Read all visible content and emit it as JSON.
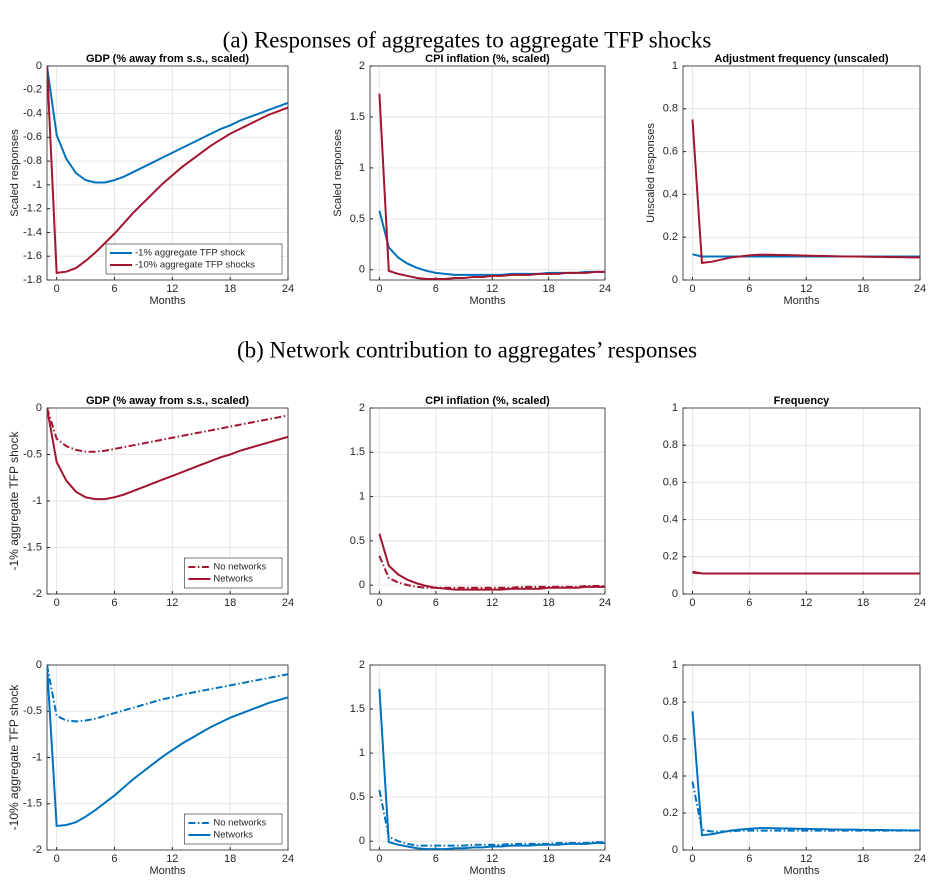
{
  "headings": [
    "(a) Responses of aggregates to aggregate TFP shocks",
    "(b) Network contribution to aggregates’ responses"
  ],
  "chart_data": [
    {
      "type": "line",
      "title": "GDP (% away from s.s., scaled)",
      "y_label": "Scaled responses",
      "x_label": "Months",
      "x": [
        -1,
        0,
        1,
        2,
        3,
        4,
        5,
        6,
        7,
        8,
        9,
        10,
        11,
        12,
        13,
        14,
        15,
        16,
        17,
        18,
        19,
        20,
        21,
        22,
        23,
        24
      ],
      "xlim": [
        -1,
        24
      ],
      "xticks": [
        0,
        6,
        12,
        18,
        24
      ],
      "ylim": [
        -1.8,
        0
      ],
      "yticks": [
        -1.8,
        -1.6,
        -1.4,
        -1.2,
        -1,
        -0.8,
        -0.6,
        -0.4,
        -0.2,
        0
      ],
      "grid": true,
      "legend": "lower right",
      "series": [
        {
          "name": "-1% aggregate TFP shock",
          "color": "#0072bd",
          "style": "solid",
          "values": [
            0,
            -0.58,
            -0.78,
            -0.9,
            -0.96,
            -0.98,
            -0.98,
            -0.96,
            -0.93,
            -0.89,
            -0.85,
            -0.81,
            -0.77,
            -0.73,
            -0.69,
            -0.65,
            -0.61,
            -0.57,
            -0.53,
            -0.5,
            -0.46,
            -0.43,
            -0.4,
            -0.37,
            -0.34,
            -0.31
          ]
        },
        {
          "name": "-10% aggregate TFP shocks",
          "color": "#a2142f",
          "style": "solid",
          "values": [
            0,
            -1.74,
            -1.73,
            -1.7,
            -1.64,
            -1.57,
            -1.49,
            -1.41,
            -1.32,
            -1.23,
            -1.15,
            -1.07,
            -0.99,
            -0.92,
            -0.85,
            -0.79,
            -0.73,
            -0.67,
            -0.62,
            -0.57,
            -0.53,
            -0.49,
            -0.45,
            -0.41,
            -0.38,
            -0.35
          ]
        }
      ]
    },
    {
      "type": "line",
      "title": "CPI inflation (%, scaled)",
      "y_label": "Scaled responses",
      "x_label": "Months",
      "x": [
        -1,
        0,
        1,
        2,
        3,
        4,
        5,
        6,
        7,
        8,
        9,
        10,
        11,
        12,
        13,
        14,
        15,
        16,
        17,
        18,
        19,
        20,
        21,
        22,
        23,
        24
      ],
      "xlim": [
        -1,
        24
      ],
      "xticks": [
        0,
        6,
        12,
        18,
        24
      ],
      "ylim": [
        -0.1,
        2
      ],
      "yticks": [
        0,
        0.5,
        1,
        1.5,
        2
      ],
      "grid": true,
      "series": [
        {
          "color": "#0072bd",
          "style": "solid",
          "values": [
            null,
            0.58,
            0.22,
            0.12,
            0.06,
            0.02,
            -0.01,
            -0.03,
            -0.04,
            -0.05,
            -0.05,
            -0.05,
            -0.05,
            -0.05,
            -0.05,
            -0.04,
            -0.04,
            -0.04,
            -0.04,
            -0.03,
            -0.03,
            -0.03,
            -0.03,
            -0.02,
            -0.02,
            -0.02
          ]
        },
        {
          "color": "#a2142f",
          "style": "solid",
          "values": [
            null,
            1.73,
            -0.01,
            -0.04,
            -0.06,
            -0.08,
            -0.09,
            -0.09,
            -0.09,
            -0.08,
            -0.08,
            -0.07,
            -0.07,
            -0.06,
            -0.06,
            -0.05,
            -0.05,
            -0.05,
            -0.04,
            -0.04,
            -0.04,
            -0.03,
            -0.03,
            -0.03,
            -0.02,
            -0.02
          ]
        }
      ]
    },
    {
      "type": "line",
      "title": "Adjustment frequency (unscaled)",
      "y_label": "Unscaled responses",
      "x_label": "Months",
      "x": [
        -1,
        0,
        1,
        2,
        3,
        4,
        5,
        6,
        7,
        8,
        9,
        10,
        11,
        12,
        13,
        14,
        15,
        16,
        17,
        18,
        19,
        20,
        21,
        22,
        23,
        24
      ],
      "xlim": [
        -1,
        24
      ],
      "xticks": [
        0,
        6,
        12,
        18,
        24
      ],
      "ylim": [
        0,
        1
      ],
      "yticks": [
        0,
        0.2,
        0.4,
        0.6,
        0.8,
        1
      ],
      "grid": true,
      "series": [
        {
          "color": "#0072bd",
          "style": "solid",
          "values": [
            null,
            0.12,
            0.11,
            0.11,
            0.11,
            0.11,
            0.11,
            0.11,
            0.11,
            0.11,
            0.11,
            0.11,
            0.11,
            0.11,
            0.11,
            0.11,
            0.11,
            0.11,
            0.11,
            0.11,
            0.11,
            0.11,
            0.11,
            0.11,
            0.11,
            0.11
          ]
        },
        {
          "color": "#a2142f",
          "style": "solid",
          "values": [
            null,
            0.75,
            0.08,
            0.085,
            0.095,
            0.105,
            0.11,
            0.115,
            0.118,
            0.118,
            0.117,
            0.116,
            0.115,
            0.114,
            0.113,
            0.112,
            0.111,
            0.11,
            0.11,
            0.109,
            0.108,
            0.108,
            0.107,
            0.107,
            0.106,
            0.106
          ]
        }
      ]
    },
    {
      "type": "line",
      "title": "GDP (% away from s.s., scaled)",
      "y_label": "-1% aggregate TFP shock",
      "x": [
        -1,
        0,
        1,
        2,
        3,
        4,
        5,
        6,
        7,
        8,
        9,
        10,
        11,
        12,
        13,
        14,
        15,
        16,
        17,
        18,
        19,
        20,
        21,
        22,
        23,
        24
      ],
      "xlim": [
        -1,
        24
      ],
      "xticks": [
        0,
        6,
        12,
        18,
        24
      ],
      "ylim": [
        -2,
        0
      ],
      "yticks": [
        -2,
        -1.5,
        -1,
        -0.5,
        0
      ],
      "grid": true,
      "legend": "lower right",
      "series": [
        {
          "name": "No networks",
          "color": "#a2142f",
          "style": "dashdot",
          "values": [
            0,
            -0.33,
            -0.41,
            -0.45,
            -0.47,
            -0.47,
            -0.46,
            -0.44,
            -0.42,
            -0.4,
            -0.38,
            -0.36,
            -0.34,
            -0.32,
            -0.3,
            -0.28,
            -0.26,
            -0.24,
            -0.22,
            -0.2,
            -0.18,
            -0.16,
            -0.14,
            -0.12,
            -0.1,
            -0.08
          ]
        },
        {
          "name": "Networks",
          "color": "#a2142f",
          "style": "solid",
          "values": [
            0,
            -0.58,
            -0.78,
            -0.9,
            -0.96,
            -0.98,
            -0.98,
            -0.96,
            -0.93,
            -0.89,
            -0.85,
            -0.81,
            -0.77,
            -0.73,
            -0.69,
            -0.65,
            -0.61,
            -0.57,
            -0.53,
            -0.5,
            -0.46,
            -0.43,
            -0.4,
            -0.37,
            -0.34,
            -0.31
          ]
        }
      ]
    },
    {
      "type": "line",
      "title": "CPI inflation (%, scaled)",
      "x": [
        -1,
        0,
        1,
        2,
        3,
        4,
        5,
        6,
        7,
        8,
        9,
        10,
        11,
        12,
        13,
        14,
        15,
        16,
        17,
        18,
        19,
        20,
        21,
        22,
        23,
        24
      ],
      "xlim": [
        -1,
        24
      ],
      "xticks": [
        0,
        6,
        12,
        18,
        24
      ],
      "ylim": [
        -0.1,
        2
      ],
      "yticks": [
        0,
        0.5,
        1,
        1.5,
        2
      ],
      "grid": true,
      "series": [
        {
          "color": "#a2142f",
          "style": "dashdot",
          "values": [
            null,
            0.33,
            0.08,
            0.03,
            0,
            -0.02,
            -0.03,
            -0.03,
            -0.03,
            -0.03,
            -0.03,
            -0.03,
            -0.03,
            -0.03,
            -0.03,
            -0.03,
            -0.02,
            -0.02,
            -0.02,
            -0.02,
            -0.02,
            -0.02,
            -0.02,
            -0.01,
            -0.01,
            -0.01
          ]
        },
        {
          "color": "#a2142f",
          "style": "solid",
          "values": [
            null,
            0.58,
            0.22,
            0.12,
            0.06,
            0.02,
            -0.01,
            -0.03,
            -0.04,
            -0.05,
            -0.05,
            -0.05,
            -0.05,
            -0.05,
            -0.05,
            -0.04,
            -0.04,
            -0.04,
            -0.04,
            -0.03,
            -0.03,
            -0.03,
            -0.03,
            -0.02,
            -0.02,
            -0.02
          ]
        }
      ]
    },
    {
      "type": "line",
      "title": "Frequency",
      "x": [
        -1,
        0,
        1,
        2,
        3,
        4,
        5,
        6,
        7,
        8,
        9,
        10,
        11,
        12,
        13,
        14,
        15,
        16,
        17,
        18,
        19,
        20,
        21,
        22,
        23,
        24
      ],
      "xlim": [
        -1,
        24
      ],
      "xticks": [
        0,
        6,
        12,
        18,
        24
      ],
      "ylim": [
        0,
        1
      ],
      "yticks": [
        0,
        0.2,
        0.4,
        0.6,
        0.8,
        1
      ],
      "grid": true,
      "series": [
        {
          "color": "#a2142f",
          "style": "dashdot",
          "values": [
            null,
            0.115,
            0.11,
            0.11,
            0.11,
            0.11,
            0.11,
            0.11,
            0.11,
            0.11,
            0.11,
            0.11,
            0.11,
            0.11,
            0.11,
            0.11,
            0.11,
            0.11,
            0.11,
            0.11,
            0.11,
            0.11,
            0.11,
            0.11,
            0.11,
            0.11
          ]
        },
        {
          "color": "#a2142f",
          "style": "solid",
          "values": [
            null,
            0.12,
            0.11,
            0.11,
            0.11,
            0.11,
            0.11,
            0.11,
            0.11,
            0.11,
            0.11,
            0.11,
            0.11,
            0.11,
            0.11,
            0.11,
            0.11,
            0.11,
            0.11,
            0.11,
            0.11,
            0.11,
            0.11,
            0.11,
            0.11,
            0.11
          ]
        }
      ]
    },
    {
      "type": "line",
      "y_label": "-10% aggregate TFP shock",
      "x_label": "Months",
      "x": [
        -1,
        0,
        1,
        2,
        3,
        4,
        5,
        6,
        7,
        8,
        9,
        10,
        11,
        12,
        13,
        14,
        15,
        16,
        17,
        18,
        19,
        20,
        21,
        22,
        23,
        24
      ],
      "xlim": [
        -1,
        24
      ],
      "xticks": [
        0,
        6,
        12,
        18,
        24
      ],
      "ylim": [
        -2,
        0
      ],
      "yticks": [
        -2,
        -1.5,
        -1,
        -0.5,
        0
      ],
      "grid": true,
      "legend": "lower right",
      "series": [
        {
          "name": "No networks",
          "color": "#0072bd",
          "style": "dashdot",
          "values": [
            0,
            -0.55,
            -0.6,
            -0.61,
            -0.6,
            -0.58,
            -0.55,
            -0.52,
            -0.49,
            -0.46,
            -0.43,
            -0.4,
            -0.37,
            -0.35,
            -0.32,
            -0.3,
            -0.28,
            -0.26,
            -0.24,
            -0.22,
            -0.2,
            -0.18,
            -0.16,
            -0.14,
            -0.12,
            -0.1
          ]
        },
        {
          "name": "Networks",
          "color": "#0072bd",
          "style": "solid",
          "values": [
            0,
            -1.74,
            -1.73,
            -1.7,
            -1.64,
            -1.57,
            -1.49,
            -1.41,
            -1.32,
            -1.23,
            -1.15,
            -1.07,
            -0.99,
            -0.92,
            -0.85,
            -0.79,
            -0.73,
            -0.67,
            -0.62,
            -0.57,
            -0.53,
            -0.49,
            -0.45,
            -0.41,
            -0.38,
            -0.35
          ]
        }
      ]
    },
    {
      "type": "line",
      "x_label": "Months",
      "x": [
        -1,
        0,
        1,
        2,
        3,
        4,
        5,
        6,
        7,
        8,
        9,
        10,
        11,
        12,
        13,
        14,
        15,
        16,
        17,
        18,
        19,
        20,
        21,
        22,
        23,
        24
      ],
      "xlim": [
        -1,
        24
      ],
      "xticks": [
        0,
        6,
        12,
        18,
        24
      ],
      "ylim": [
        -0.1,
        2
      ],
      "yticks": [
        0,
        0.5,
        1,
        1.5,
        2
      ],
      "grid": true,
      "series": [
        {
          "color": "#0072bd",
          "style": "dashdot",
          "values": [
            null,
            0.58,
            0.05,
            0,
            -0.03,
            -0.05,
            -0.05,
            -0.05,
            -0.05,
            -0.05,
            -0.05,
            -0.04,
            -0.04,
            -0.04,
            -0.04,
            -0.03,
            -0.03,
            -0.03,
            -0.03,
            -0.03,
            -0.02,
            -0.02,
            -0.02,
            -0.02,
            -0.01,
            -0.01
          ]
        },
        {
          "color": "#0072bd",
          "style": "solid",
          "values": [
            null,
            1.73,
            -0.01,
            -0.04,
            -0.06,
            -0.08,
            -0.09,
            -0.09,
            -0.09,
            -0.08,
            -0.08,
            -0.07,
            -0.07,
            -0.06,
            -0.06,
            -0.05,
            -0.05,
            -0.05,
            -0.04,
            -0.04,
            -0.04,
            -0.03,
            -0.03,
            -0.03,
            -0.02,
            -0.02
          ]
        }
      ]
    },
    {
      "type": "line",
      "x_label": "Months",
      "x": [
        -1,
        0,
        1,
        2,
        3,
        4,
        5,
        6,
        7,
        8,
        9,
        10,
        11,
        12,
        13,
        14,
        15,
        16,
        17,
        18,
        19,
        20,
        21,
        22,
        23,
        24
      ],
      "xlim": [
        -1,
        24
      ],
      "xticks": [
        0,
        6,
        12,
        18,
        24
      ],
      "ylim": [
        0,
        1
      ],
      "yticks": [
        0,
        0.2,
        0.4,
        0.6,
        0.8,
        1
      ],
      "grid": true,
      "series": [
        {
          "color": "#0072bd",
          "style": "dashdot",
          "values": [
            null,
            0.37,
            0.11,
            0.1,
            0.1,
            0.1,
            0.105,
            0.105,
            0.105,
            0.105,
            0.105,
            0.105,
            0.105,
            0.105,
            0.105,
            0.105,
            0.105,
            0.105,
            0.105,
            0.105,
            0.105,
            0.105,
            0.105,
            0.105,
            0.105,
            0.105
          ]
        },
        {
          "color": "#0072bd",
          "style": "solid",
          "values": [
            null,
            0.75,
            0.08,
            0.085,
            0.095,
            0.105,
            0.11,
            0.115,
            0.118,
            0.118,
            0.117,
            0.116,
            0.115,
            0.114,
            0.113,
            0.112,
            0.111,
            0.11,
            0.11,
            0.109,
            0.108,
            0.108,
            0.107,
            0.107,
            0.106,
            0.106
          ]
        }
      ]
    }
  ]
}
